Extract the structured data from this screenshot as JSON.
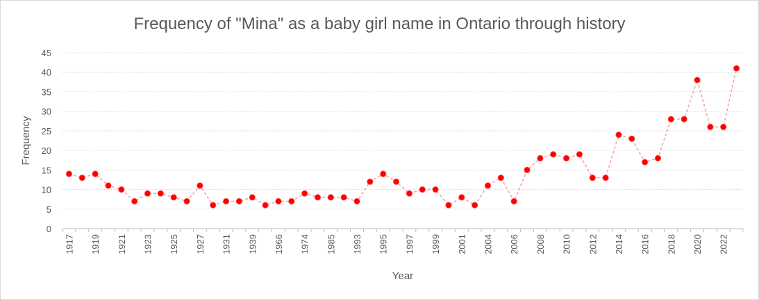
{
  "chart_data": {
    "type": "line",
    "title": "Frequency of \"Mina\" as a baby girl name in Ontario through history",
    "xlabel": "Year",
    "ylabel": "Frequency",
    "ylim": [
      0,
      45
    ],
    "y_ticks": [
      0,
      5,
      10,
      15,
      20,
      25,
      30,
      35,
      40,
      45
    ],
    "x_tick_labels": [
      "1917",
      "1919",
      "1921",
      "1923",
      "1925",
      "1927",
      "1931",
      "1939",
      "1966",
      "1974",
      "1985",
      "1993",
      "1995",
      "1997",
      "1999",
      "2001",
      "2004",
      "2006",
      "2008",
      "2010",
      "2012",
      "2014",
      "2016",
      "2018",
      "2020",
      "2022"
    ],
    "x_tick_every": 2,
    "grid": true,
    "line_style": "dashed",
    "colors": {
      "line": "#f4a5a5",
      "marker": "#ff0000",
      "grid": "#d9d9d9",
      "axis": "#bfbfbf"
    },
    "series": [
      {
        "values": [
          14,
          13,
          14,
          11,
          10,
          7,
          9,
          9,
          8,
          7,
          11,
          6,
          7,
          7,
          8,
          6,
          7,
          7,
          9,
          8,
          8,
          8,
          7,
          12,
          14,
          12,
          9,
          10,
          10,
          6,
          8,
          6,
          11,
          13,
          7,
          15,
          18,
          19,
          18,
          19,
          13,
          13,
          24,
          23,
          17,
          18,
          28,
          28,
          38,
          26,
          26,
          41
        ]
      }
    ]
  }
}
